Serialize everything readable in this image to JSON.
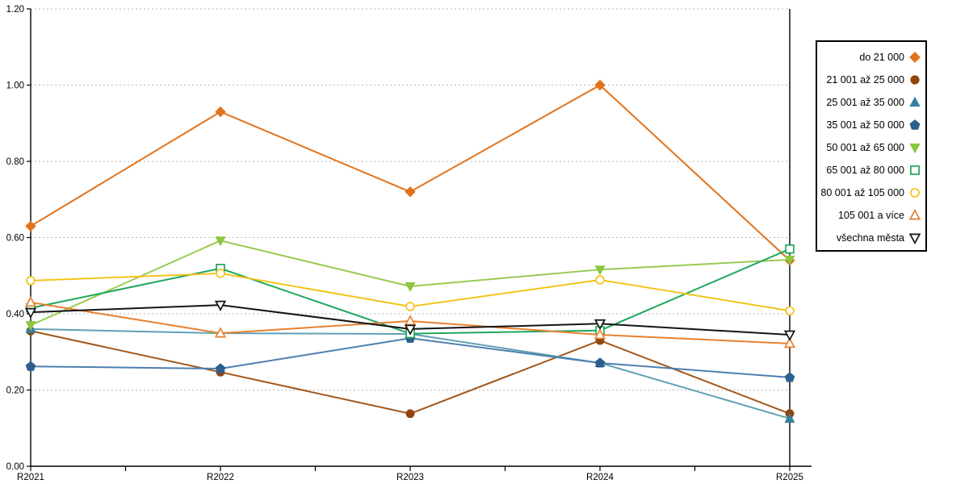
{
  "chart_data": {
    "type": "line",
    "title": "",
    "xlabel": "",
    "ylabel": "",
    "x_categories": [
      "R2021",
      "R2022",
      "R2023",
      "R2024",
      "R2025"
    ],
    "y_ticks": [
      "0.00",
      "0.20",
      "0.40",
      "0.60",
      "0.80",
      "1.00",
      "1.20"
    ],
    "ylim": [
      0.0,
      1.2
    ],
    "grid": "horizontal-dashed",
    "legend_position": "right",
    "series": [
      {
        "name": "do 21 000",
        "marker": "diamond",
        "fill": "filled",
        "color": "#e1731c",
        "line_color": "#e1731c",
        "values": [
          0.63,
          0.93,
          0.72,
          1.0,
          0.54
        ]
      },
      {
        "name": "21 001 až 25 000",
        "marker": "circle",
        "fill": "filled",
        "color": "#8f460f",
        "line_color": "#a2571c",
        "values": [
          0.355,
          0.247,
          0.138,
          0.33,
          0.138
        ]
      },
      {
        "name": "25 001 až 35 000",
        "marker": "triangle-up",
        "fill": "filled",
        "color": "#36809e",
        "line_color": "#61a0b5",
        "values": [
          0.36,
          0.349,
          0.347,
          0.271,
          0.125
        ]
      },
      {
        "name": "35 001 až 50 000",
        "marker": "pentagon",
        "fill": "filled",
        "color": "#2d5f8c",
        "line_color": "#4d7fae",
        "values": [
          0.262,
          0.256,
          0.336,
          0.271,
          0.233
        ]
      },
      {
        "name": "50 001 až 65 000",
        "marker": "triangle-down",
        "fill": "filled",
        "color": "#8cc63f",
        "line_color": "#97cb52",
        "values": [
          0.37,
          0.592,
          0.472,
          0.516,
          0.542
        ]
      },
      {
        "name": "65 001 až 80 000",
        "marker": "square",
        "fill": "open",
        "color": "#1ea75c",
        "line_color": "#1ea75c",
        "values": [
          0.415,
          0.519,
          0.348,
          0.356,
          0.57
        ]
      },
      {
        "name": "80 001 až 105 000",
        "marker": "circle",
        "fill": "open",
        "color": "#f3c31b",
        "line_color": "#f3c31b",
        "values": [
          0.487,
          0.506,
          0.419,
          0.489,
          0.408
        ]
      },
      {
        "name": "105 001 a více",
        "marker": "triangle-up",
        "fill": "open",
        "color": "#e8802f",
        "line_color": "#e8802f",
        "values": [
          0.43,
          0.349,
          0.381,
          0.345,
          0.322
        ]
      },
      {
        "name": "všechna města",
        "marker": "triangle-down",
        "fill": "open",
        "color": "#141414",
        "line_color": "#141414",
        "values": [
          0.404,
          0.423,
          0.36,
          0.374,
          0.345
        ]
      }
    ]
  }
}
